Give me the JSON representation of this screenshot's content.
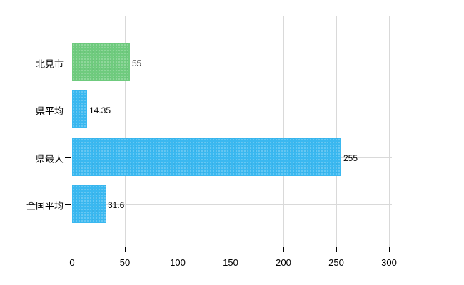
{
  "chart_data": {
    "type": "bar",
    "orientation": "horizontal",
    "title": "",
    "categories": [
      "北見市",
      "県平均",
      "県最大",
      "全国平均"
    ],
    "values": [
      55,
      14.35,
      255,
      31.6
    ],
    "value_labels": [
      "55",
      "14.35",
      "255",
      "31.6"
    ],
    "bar_colors": [
      "#6fcb7e",
      "#3ab8f0",
      "#3ab8f0",
      "#3ab8f0"
    ],
    "x_tick_values": [
      0,
      50,
      100,
      150,
      200,
      250,
      300
    ],
    "x_tick_labels": [
      "0",
      "50",
      "100",
      "150",
      "200",
      "250",
      "300"
    ],
    "xlim": [
      0,
      300
    ],
    "grid": true,
    "legend": false,
    "colors": {
      "grid": "#d9d9d9",
      "axis": "#000000",
      "text": "#000000",
      "background": "#ffffff",
      "bar_green": "#6fcb7e",
      "bar_blue": "#3ab8f0"
    }
  }
}
